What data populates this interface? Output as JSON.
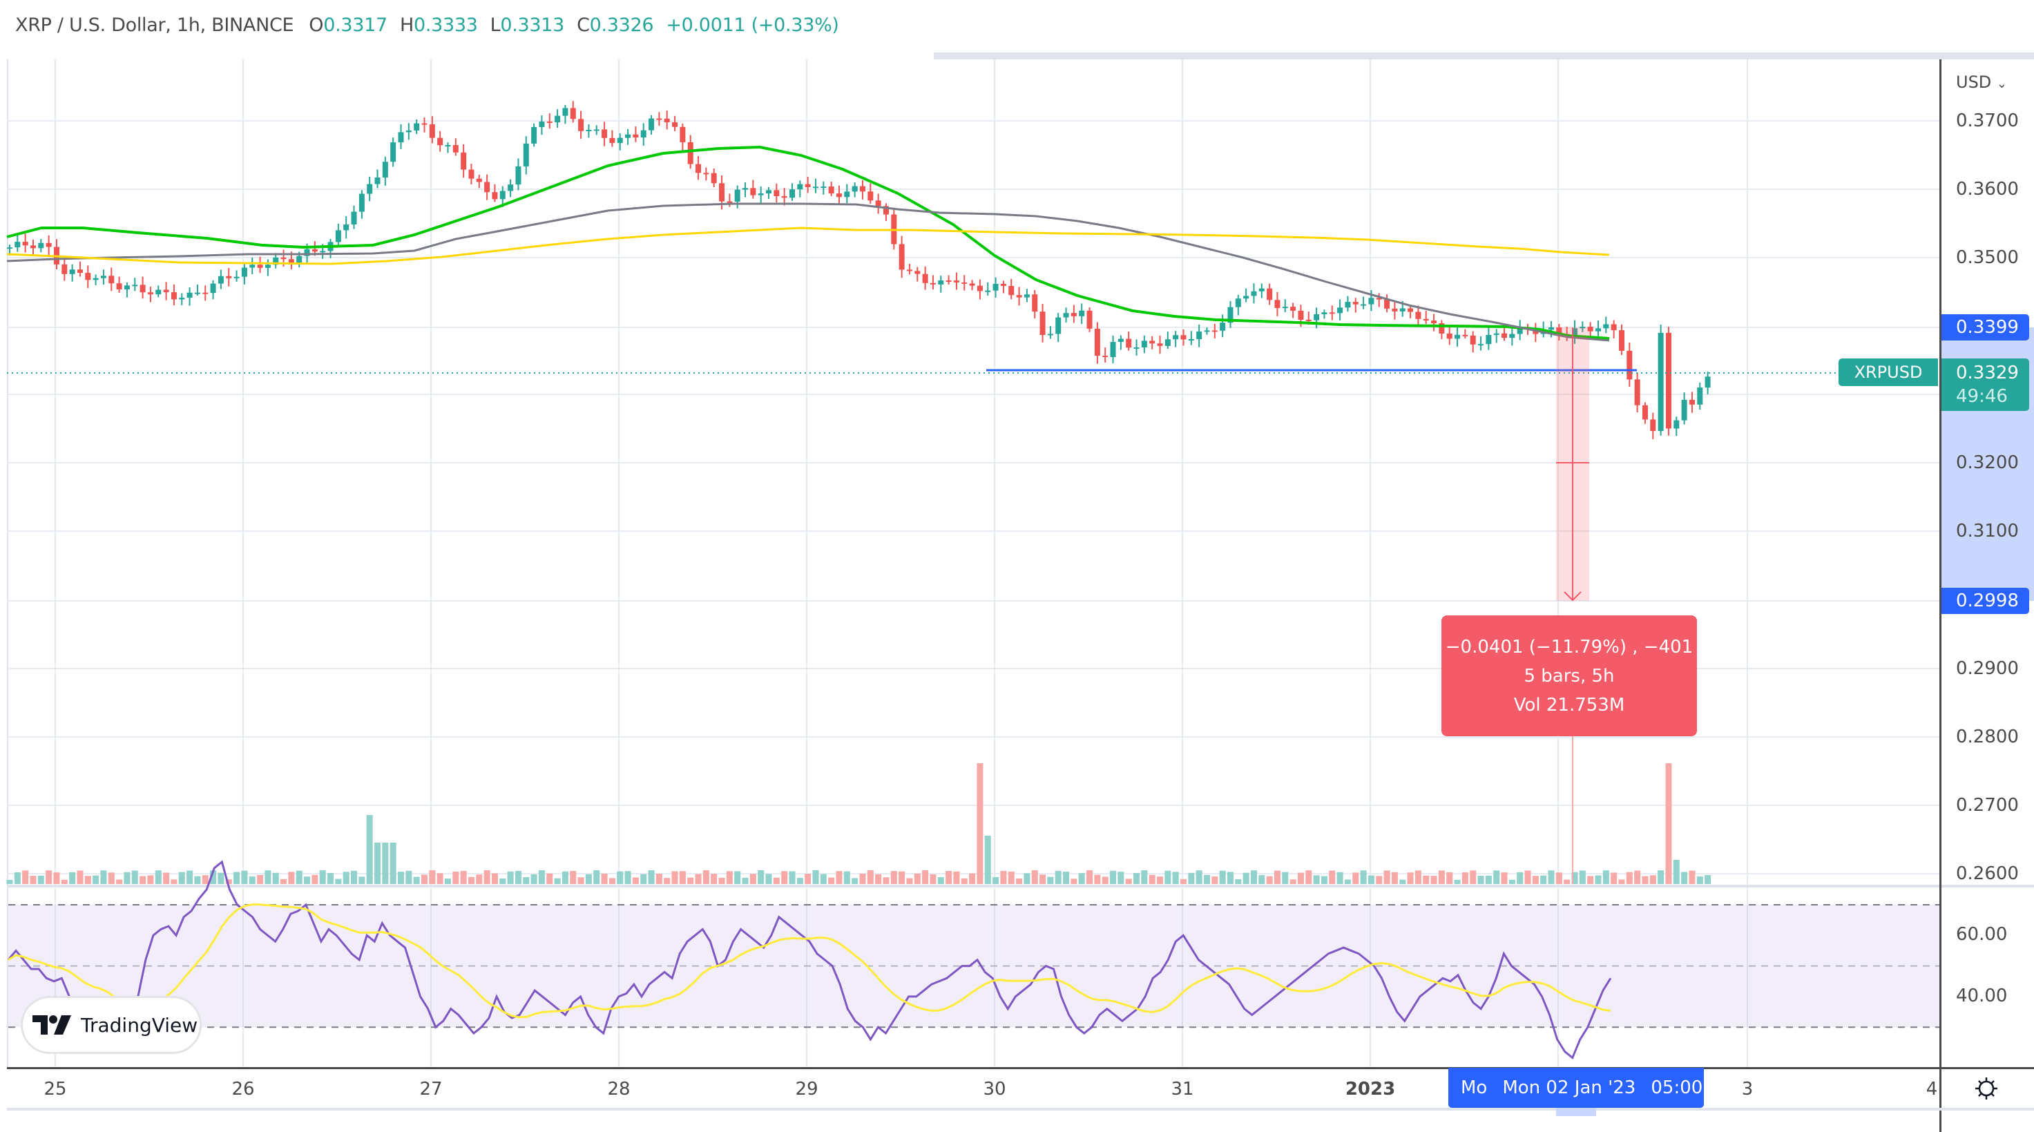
{
  "header": {
    "symbol": "XRP / U.S. Dollar, 1h, BINANCE",
    "open_label": "O",
    "open": "0.3317",
    "high_label": "H",
    "high": "0.3333",
    "low_label": "L",
    "low": "0.3313",
    "close_label": "C",
    "close": "0.3326",
    "change": "+0.0011 (+0.33%)"
  },
  "price_axis": {
    "currency": "USD",
    "ticks": [
      "0.3700",
      "0.3600",
      "0.3500",
      "0.3200",
      "0.3100",
      "0.2900",
      "0.2800",
      "0.2700",
      "0.2600"
    ],
    "range_high": "0.3399",
    "range_low": "0.2998",
    "current_price": "0.3329",
    "countdown": "49:46",
    "symbol_tag": "XRPUSD"
  },
  "measure_tool": {
    "line1": "−0.0401 (−11.79%) , −401",
    "line2": "5 bars, 5h",
    "line3": "Vol 21.753M"
  },
  "rsi_axis": {
    "ticks": [
      "60.00",
      "40.00"
    ]
  },
  "time_axis": {
    "labels": [
      "25",
      "26",
      "27",
      "28",
      "29",
      "30",
      "31",
      "2023",
      "3",
      "4"
    ],
    "crosshair_day": "Mo",
    "crosshair_label": "Mon 02 Jan '23",
    "crosshair_time": "05:00"
  },
  "branding": {
    "logo_text": "TradingView"
  },
  "colors": {
    "up": "#26a69a",
    "down": "#ef5350",
    "ma_fast": "#00c800",
    "ma_mid": "#787b86",
    "ma_slow": "#ffd700",
    "rsi": "#7e57c2",
    "rsi_ma": "#ffeb3b",
    "accent": "#2962ff"
  },
  "chart_data": {
    "type": "candlestick",
    "title": "XRP / U.S. Dollar, 1h, BINANCE",
    "ylabel": "USD",
    "ylim": [
      0.2585,
      0.379
    ],
    "closes_sampled": [
      0.3515,
      0.352,
      0.3518,
      0.348,
      0.3475,
      0.347,
      0.346,
      0.3455,
      0.345,
      0.3445,
      0.3442,
      0.3455,
      0.347,
      0.348,
      0.349,
      0.3495,
      0.35,
      0.351,
      0.352,
      0.356,
      0.36,
      0.364,
      0.369,
      0.3695,
      0.367,
      0.365,
      0.361,
      0.359,
      0.36,
      0.368,
      0.37,
      0.3715,
      0.369,
      0.368,
      0.367,
      0.368,
      0.37,
      0.3705,
      0.364,
      0.362,
      0.358,
      0.36,
      0.3595,
      0.359,
      0.36,
      0.361,
      0.359,
      0.36,
      0.3595,
      0.356,
      0.348,
      0.347,
      0.346,
      0.347,
      0.345,
      0.346,
      0.345,
      0.344,
      0.338,
      0.342,
      0.342,
      0.335,
      0.338,
      0.337,
      0.3375,
      0.338,
      0.3385,
      0.339,
      0.341,
      0.345,
      0.345,
      0.343,
      0.3415,
      0.341,
      0.3425,
      0.343,
      0.344,
      0.343,
      0.342,
      0.3415,
      0.339,
      0.3385,
      0.3375,
      0.3385,
      0.339,
      0.3395,
      0.3393,
      0.339,
      0.3395,
      0.34,
      0.339,
      0.328,
      0.325,
      0.327,
      0.33,
      0.3326
    ],
    "indicators": [
      "MA fast (green)",
      "MA mid (gray)",
      "MA slow (yellow)",
      "Volume",
      "RSI with MA"
    ],
    "rsi_levels": [
      70,
      50,
      30
    ],
    "measure": {
      "change": -0.0401,
      "percent": -11.79,
      "bars": 5,
      "volume": "21.753M",
      "from": 0.3399,
      "to": 0.2998
    }
  }
}
